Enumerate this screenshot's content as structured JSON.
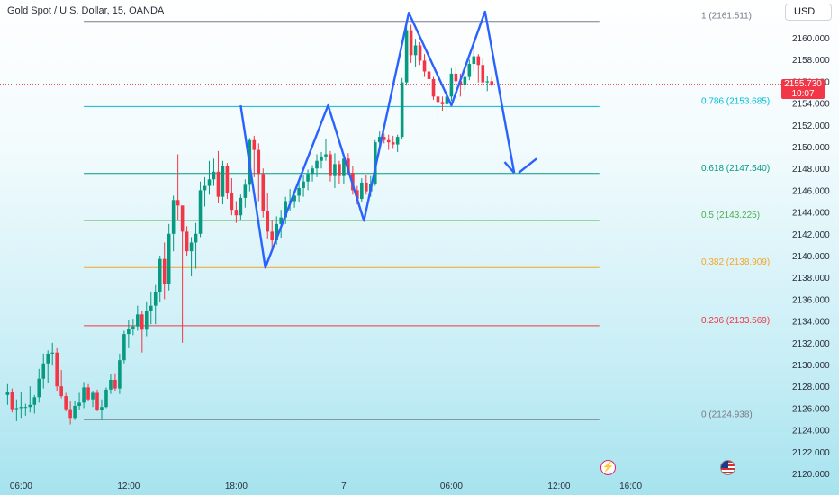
{
  "chart_data": {
    "type": "candlestick",
    "title": "Gold Spot / U.S. Dollar, 15, OANDA",
    "currency": "USD",
    "last_price": "2155.730",
    "countdown": "10:07",
    "y_ticks": [
      2120,
      2122,
      2124,
      2126,
      2128,
      2130,
      2132,
      2134,
      2136,
      2138,
      2140,
      2142,
      2144,
      2146,
      2148,
      2150,
      2152,
      2154,
      2156,
      2158,
      2160
    ],
    "y_tick_labels": [
      "2120.000",
      "2122.000",
      "2124.000",
      "2126.000",
      "2128.000",
      "2130.000",
      "2132.000",
      "2134.000",
      "2136.000",
      "2138.000",
      "2140.000",
      "2142.000",
      "2144.000",
      "2146.000",
      "2148.000",
      "2150.000",
      "2152.000",
      "2154.000",
      "2156.000",
      "2158.000",
      "2160.000"
    ],
    "x_ticks": [
      {
        "label": "06:00",
        "index": 3
      },
      {
        "label": "12:00",
        "index": 27
      },
      {
        "label": "18:00",
        "index": 51
      },
      {
        "label": "7",
        "index": 75
      },
      {
        "label": "06:00",
        "index": 99
      },
      {
        "label": "12:00",
        "index": 123
      },
      {
        "label": "16:00",
        "index": 139
      }
    ],
    "fibonacci": [
      {
        "level": "1",
        "value": 2161.511,
        "color": "#787b86"
      },
      {
        "level": "0.786",
        "value": 2153.685,
        "color": "#00bcd4"
      },
      {
        "level": "0.618",
        "value": 2147.54,
        "color": "#089981"
      },
      {
        "level": "0.5",
        "value": 2143.225,
        "color": "#4caf50"
      },
      {
        "level": "0.382",
        "value": 2138.909,
        "color": "#f5a623"
      },
      {
        "level": "0.236",
        "value": 2133.569,
        "color": "#f23645"
      },
      {
        "level": "0",
        "value": 2124.938,
        "color": "#787b86"
      }
    ],
    "fib_range": {
      "start_index": 17,
      "end_index": 132
    },
    "pattern": [
      {
        "i": 52,
        "v": 2153.8
      },
      {
        "i": 57.5,
        "v": 2138.9
      },
      {
        "i": 71.5,
        "v": 2153.8
      },
      {
        "i": 79.5,
        "v": 2143.2
      },
      {
        "i": 89.5,
        "v": 2162.3
      },
      {
        "i": 99,
        "v": 2153.8
      },
      {
        "i": 106.5,
        "v": 2162.4
      },
      {
        "i": 113,
        "v": 2147.6
      }
    ],
    "arrow_tip": {
      "i": 114,
      "v": 2147.6
    },
    "arrow_tail": {
      "i": 118,
      "v": 2148.9
    },
    "colors": {
      "up": "#089981",
      "down": "#f23645",
      "pattern": "#2962ff"
    },
    "ohlc": [
      [
        2127.2,
        2128.2,
        2126.3,
        2127.5
      ],
      [
        2127.5,
        2127.8,
        2125.6,
        2125.9
      ],
      [
        2125.9,
        2126.8,
        2124.8,
        2126.0
      ],
      [
        2126.0,
        2127.5,
        2125.1,
        2126.1
      ],
      [
        2126.1,
        2126.4,
        2125.3,
        2126.1
      ],
      [
        2126.1,
        2128.0,
        2125.6,
        2126.3
      ],
      [
        2126.3,
        2127.2,
        2125.5,
        2127.0
      ],
      [
        2127.0,
        2129.6,
        2126.5,
        2128.7
      ],
      [
        2128.7,
        2131.0,
        2127.8,
        2130.1
      ],
      [
        2130.1,
        2131.3,
        2128.3,
        2131.0
      ],
      [
        2131.0,
        2132.0,
        2129.9,
        2131.1
      ],
      [
        2131.1,
        2131.5,
        2127.6,
        2128.0
      ],
      [
        2128.0,
        2129.5,
        2126.9,
        2127.1
      ],
      [
        2127.1,
        2127.4,
        2125.7,
        2125.9
      ],
      [
        2125.9,
        2126.6,
        2124.5,
        2125.1
      ],
      [
        2125.1,
        2126.7,
        2124.9,
        2126.2
      ],
      [
        2126.2,
        2127.4,
        2125.8,
        2126.5
      ],
      [
        2126.5,
        2128.4,
        2126.0,
        2127.9
      ],
      [
        2127.9,
        2128.2,
        2126.7,
        2126.8
      ],
      [
        2126.8,
        2127.6,
        2126.1,
        2127.4
      ],
      [
        2127.4,
        2127.7,
        2125.7,
        2125.8
      ],
      [
        2125.8,
        2126.8,
        2124.9,
        2126.1
      ],
      [
        2126.1,
        2127.9,
        2126.0,
        2127.7
      ],
      [
        2127.7,
        2129.1,
        2127.3,
        2128.6
      ],
      [
        2128.6,
        2129.2,
        2127.6,
        2127.8
      ],
      [
        2127.8,
        2131.0,
        2127.3,
        2130.4
      ],
      [
        2130.4,
        2133.1,
        2130.1,
        2132.8
      ],
      [
        2132.8,
        2134.1,
        2131.5,
        2133.3
      ],
      [
        2133.3,
        2134.2,
        2132.7,
        2133.5
      ],
      [
        2133.5,
        2135.4,
        2133.1,
        2134.6
      ],
      [
        2134.6,
        2134.9,
        2131.1,
        2133.2
      ],
      [
        2133.2,
        2135.8,
        2132.6,
        2134.9
      ],
      [
        2134.9,
        2136.7,
        2133.7,
        2135.4
      ],
      [
        2135.4,
        2137.3,
        2133.7,
        2136.7
      ],
      [
        2136.7,
        2140.0,
        2135.7,
        2139.7
      ],
      [
        2139.7,
        2141.2,
        2136.0,
        2137.4
      ],
      [
        2137.4,
        2142.9,
        2136.8,
        2142.0
      ],
      [
        2142.0,
        2145.5,
        2140.4,
        2145.1
      ],
      [
        2145.1,
        2149.3,
        2143.2,
        2144.6
      ],
      [
        2144.6,
        2144.6,
        2132.0,
        2142.2
      ],
      [
        2142.2,
        2142.7,
        2140.0,
        2140.4
      ],
      [
        2140.4,
        2141.7,
        2138.1,
        2141.2
      ],
      [
        2141.2,
        2143.0,
        2138.8,
        2142.0
      ],
      [
        2142.0,
        2146.8,
        2141.7,
        2146.0
      ],
      [
        2146.0,
        2147.2,
        2144.5,
        2146.4
      ],
      [
        2146.4,
        2148.7,
        2145.6,
        2147.0
      ],
      [
        2147.0,
        2148.9,
        2146.4,
        2147.7
      ],
      [
        2147.7,
        2149.6,
        2144.8,
        2145.4
      ],
      [
        2145.4,
        2148.7,
        2144.7,
        2148.2
      ],
      [
        2148.2,
        2148.5,
        2145.2,
        2145.7
      ],
      [
        2145.7,
        2147.1,
        2143.7,
        2144.2
      ],
      [
        2144.2,
        2145.0,
        2143.0,
        2143.7
      ],
      [
        2143.7,
        2145.6,
        2143.2,
        2145.3
      ],
      [
        2145.3,
        2147.0,
        2144.4,
        2146.5
      ],
      [
        2146.5,
        2150.8,
        2145.9,
        2150.6
      ],
      [
        2150.6,
        2151.0,
        2147.2,
        2149.7
      ],
      [
        2149.7,
        2150.3,
        2145.0,
        2147.5
      ],
      [
        2147.5,
        2148.0,
        2143.5,
        2144.1
      ],
      [
        2144.1,
        2145.7,
        2141.5,
        2142.2
      ],
      [
        2142.2,
        2143.2,
        2140.5,
        2141.4
      ],
      [
        2141.4,
        2143.6,
        2141.0,
        2142.9
      ],
      [
        2142.9,
        2144.2,
        2141.6,
        2143.5
      ],
      [
        2143.5,
        2145.4,
        2142.9,
        2145.0
      ],
      [
        2145.0,
        2146.1,
        2144.1,
        2145.0
      ],
      [
        2145.0,
        2145.9,
        2144.4,
        2145.5
      ],
      [
        2145.5,
        2146.9,
        2144.9,
        2146.2
      ],
      [
        2146.2,
        2147.4,
        2145.4,
        2146.8
      ],
      [
        2146.8,
        2147.9,
        2146.0,
        2147.5
      ],
      [
        2147.5,
        2148.3,
        2146.8,
        2148.0
      ],
      [
        2148.0,
        2149.3,
        2147.2,
        2148.7
      ],
      [
        2148.7,
        2149.5,
        2148.0,
        2149.1
      ],
      [
        2149.1,
        2150.7,
        2148.7,
        2149.3
      ],
      [
        2149.3,
        2149.6,
        2146.8,
        2147.3
      ],
      [
        2147.3,
        2149.4,
        2146.2,
        2148.4
      ],
      [
        2148.4,
        2148.7,
        2146.6,
        2147.3
      ],
      [
        2147.3,
        2149.3,
        2146.6,
        2148.9
      ],
      [
        2148.9,
        2149.4,
        2147.4,
        2147.6
      ],
      [
        2147.6,
        2148.2,
        2145.6,
        2146.0
      ],
      [
        2146.0,
        2146.4,
        2144.7,
        2145.2
      ],
      [
        2145.2,
        2147.1,
        2144.9,
        2146.7
      ],
      [
        2146.7,
        2147.4,
        2145.6,
        2145.9
      ],
      [
        2145.9,
        2147.3,
        2145.4,
        2146.6
      ],
      [
        2146.6,
        2150.6,
        2146.4,
        2150.4
      ],
      [
        2150.4,
        2151.4,
        2149.7,
        2150.9
      ],
      [
        2150.9,
        2151.2,
        2150.3,
        2150.6
      ],
      [
        2150.6,
        2151.1,
        2149.7,
        2150.4
      ],
      [
        2150.4,
        2151.0,
        2149.8,
        2150.2
      ],
      [
        2150.2,
        2151.1,
        2149.5,
        2150.9
      ],
      [
        2150.9,
        2156.3,
        2150.7,
        2155.9
      ],
      [
        2155.9,
        2161.2,
        2155.6,
        2160.7
      ],
      [
        2160.7,
        2161.2,
        2157.7,
        2158.4
      ],
      [
        2158.4,
        2159.9,
        2157.3,
        2159.3
      ],
      [
        2159.3,
        2159.6,
        2157.5,
        2157.9
      ],
      [
        2157.9,
        2158.5,
        2156.4,
        2156.9
      ],
      [
        2156.9,
        2157.6,
        2155.9,
        2156.2
      ],
      [
        2156.2,
        2156.4,
        2154.3,
        2154.6
      ],
      [
        2154.6,
        2155.9,
        2152.0,
        2154.1
      ],
      [
        2154.1,
        2154.6,
        2153.3,
        2153.9
      ],
      [
        2153.9,
        2155.2,
        2153.1,
        2154.6
      ],
      [
        2154.6,
        2157.2,
        2154.2,
        2156.7
      ],
      [
        2156.7,
        2157.4,
        2155.7,
        2156.0
      ],
      [
        2156.0,
        2156.7,
        2154.6,
        2155.7
      ],
      [
        2155.7,
        2157.3,
        2155.2,
        2156.4
      ],
      [
        2156.4,
        2158.0,
        2156.1,
        2157.6
      ],
      [
        2157.6,
        2159.2,
        2156.9,
        2158.3
      ],
      [
        2158.3,
        2158.5,
        2155.9,
        2157.5
      ],
      [
        2157.5,
        2158.1,
        2155.7,
        2155.9
      ],
      [
        2155.9,
        2156.5,
        2155.1,
        2156.0
      ],
      [
        2156.0,
        2156.4,
        2155.5,
        2155.7
      ]
    ]
  }
}
